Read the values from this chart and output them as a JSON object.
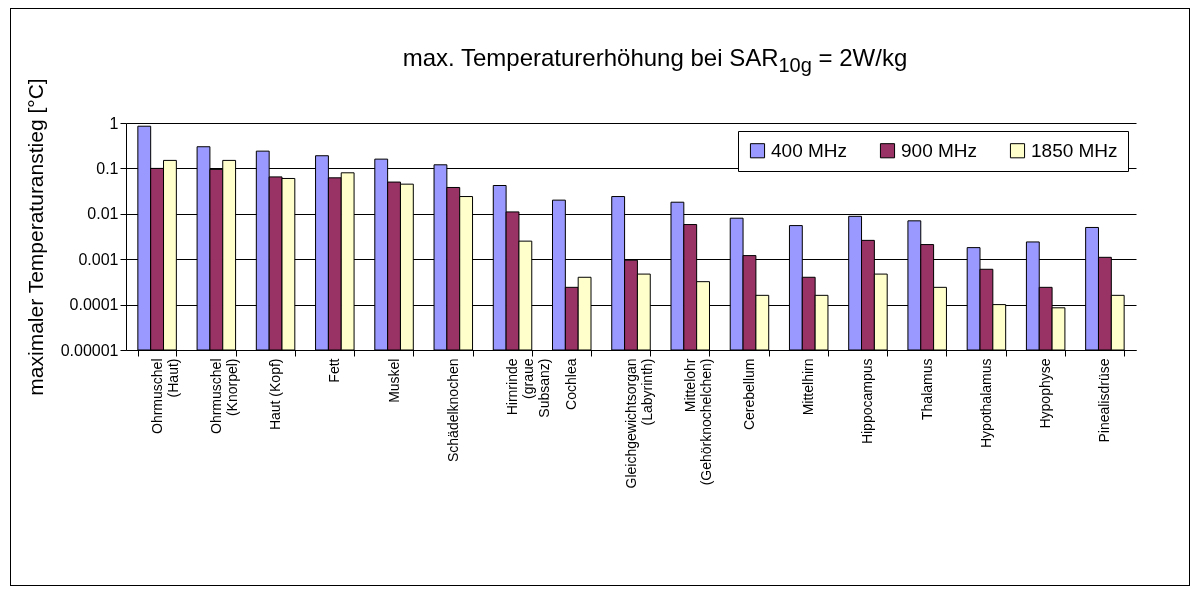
{
  "chart_data": {
    "type": "bar",
    "title": "max. Temperaturerhöhung bei SAR$_{10g}$ = 2W/kg",
    "ylabel": "maximaler Temperaturanstieg [°C]",
    "categories": [
      "Ohrmuschel (Haut)",
      "Ohrmuschel (Knorpel)",
      "Haut (Kopf)",
      "Fett",
      "Muskel",
      "Schädelknochen",
      "Hirnrinde (graue Subsanz)",
      "Cochlea",
      "Gleichgewichtsorgan (Labyrinth)",
      "Mittelohr (Gehörknochelchen)",
      "Cerebellum",
      "Mittelhirn",
      "Hippocampus",
      "Thalamus",
      "Hypothalamus",
      "Hypophyse",
      "Pinealisdrüse"
    ],
    "series": [
      {
        "name": "400 MHz",
        "color": "#9999ff",
        "values": [
          0.85,
          0.3,
          0.24,
          0.19,
          0.16,
          0.12,
          0.042,
          0.02,
          0.024,
          0.018,
          0.008,
          0.0055,
          0.0088,
          0.007,
          0.0018,
          0.0024,
          0.005
        ]
      },
      {
        "name": "900 MHz",
        "color": "#993366",
        "values": [
          0.1,
          0.095,
          0.065,
          0.062,
          0.05,
          0.038,
          0.011,
          0.00024,
          0.00095,
          0.0058,
          0.0012,
          0.0004,
          0.0026,
          0.0021,
          0.0006,
          0.00024,
          0.0011
        ]
      },
      {
        "name": "1850 MHz",
        "color": "#ffffcc",
        "values": [
          0.15,
          0.15,
          0.06,
          0.08,
          0.045,
          0.024,
          0.0025,
          0.0004,
          0.00047,
          0.00032,
          0.00016,
          0.00016,
          0.00047,
          0.00024,
          0.0001,
          8.5e-05,
          0.00016
        ]
      }
    ],
    "log": true,
    "ylim": [
      1e-05,
      1
    ],
    "yticks": [
      {
        "value": 1e-05,
        "label": "0.00001"
      },
      0.0001,
      0.001,
      0.01,
      0.1,
      1
    ],
    "grid": "y",
    "legend": "top right"
  }
}
